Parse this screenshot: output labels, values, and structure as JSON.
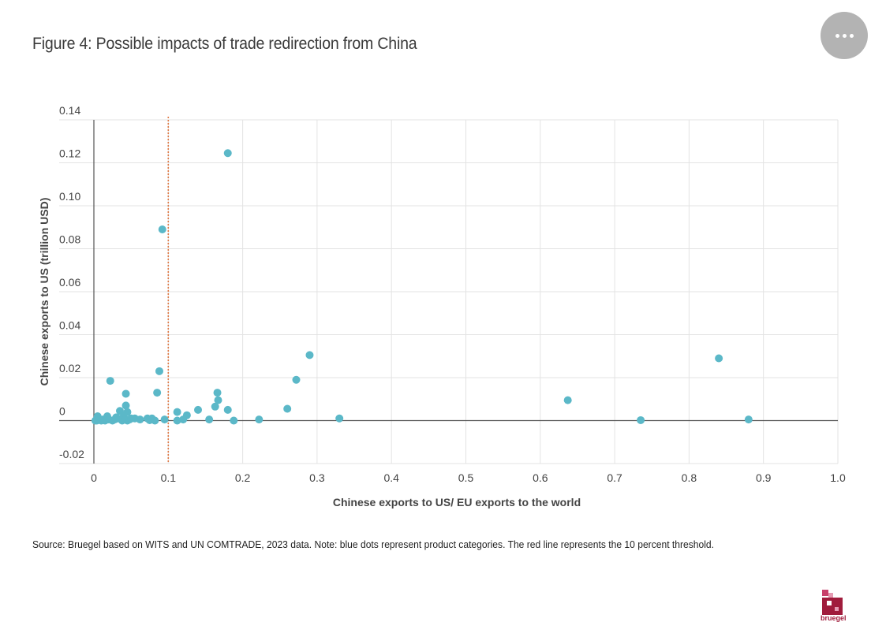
{
  "title": "Figure 4: Possible impacts of trade redirection from China",
  "source_note": "Source: Bruegel based on WITS and UN COMTRADE, 2023 data. Note: blue dots represent product categories. The red line represents the 10 percent threshold.",
  "logo_text": "bruegel",
  "menu_icon": "more-horizontal-icon",
  "colors": {
    "points": "#5bb8c8",
    "threshold": "#e07a45",
    "grid": "#e3e3e3",
    "axis": "#555555",
    "logo": "#a01c3c"
  },
  "chart_data": {
    "type": "scatter",
    "title": "",
    "xlabel": "Chinese exports to US/ EU exports to the world",
    "ylabel": "Chinese exports to US (trillion USD)",
    "xlim": [
      0,
      1.0
    ],
    "ylim": [
      -0.02,
      0.14
    ],
    "x_ticks": [
      0,
      0.1,
      0.2,
      0.3,
      0.4,
      0.5,
      0.6,
      0.7,
      0.8,
      0.9,
      1.0
    ],
    "x_tick_labels": [
      "0",
      "0.1",
      "0.2",
      "0.3",
      "0.4",
      "0.5",
      "0.6",
      "0.7",
      "0.8",
      "0.9",
      "1.0"
    ],
    "y_ticks": [
      -0.02,
      0,
      0.02,
      0.04,
      0.06,
      0.08,
      0.1,
      0.12,
      0.14
    ],
    "y_tick_labels": [
      "-0.02",
      "0",
      "0.02",
      "0.04",
      "0.06",
      "0.08",
      "0.10",
      "0.12",
      "0.14"
    ],
    "threshold_x": 0.1,
    "grid": true,
    "points": [
      [
        0.18,
        0.1245
      ],
      [
        0.092,
        0.089
      ],
      [
        0.29,
        0.0305
      ],
      [
        0.84,
        0.029
      ],
      [
        0.088,
        0.023
      ],
      [
        0.272,
        0.019
      ],
      [
        0.022,
        0.0185
      ],
      [
        0.043,
        0.0125
      ],
      [
        0.085,
        0.013
      ],
      [
        0.166,
        0.013
      ],
      [
        0.167,
        0.0095
      ],
      [
        0.043,
        0.007
      ],
      [
        0.163,
        0.0065
      ],
      [
        0.26,
        0.0055
      ],
      [
        0.18,
        0.005
      ],
      [
        0.14,
        0.005
      ],
      [
        0.035,
        0.0045
      ],
      [
        0.112,
        0.004
      ],
      [
        0.045,
        0.004
      ],
      [
        0.125,
        0.0025
      ],
      [
        0.637,
        0.0095
      ],
      [
        0.005,
        0.002
      ],
      [
        0.018,
        0.002
      ],
      [
        0.03,
        0.0015
      ],
      [
        0.04,
        0.002
      ],
      [
        0.055,
        0.001
      ],
      [
        0.062,
        0.0005
      ],
      [
        0.072,
        0.001
      ],
      [
        0.078,
        0.001
      ],
      [
        0.095,
        0.0005
      ],
      [
        0.12,
        0.0005
      ],
      [
        0.155,
        0.0005
      ],
      [
        0.222,
        0.0005
      ],
      [
        0.33,
        0.001
      ],
      [
        0.88,
        0.0005
      ],
      [
        0.735,
        0.0002
      ],
      [
        0.188,
        0.0
      ],
      [
        0.112,
        0.0
      ],
      [
        0.082,
        0.0
      ],
      [
        0.075,
        0.0002
      ],
      [
        0.048,
        0.0005
      ],
      [
        0.045,
        0.0
      ],
      [
        0.038,
        0.0
      ],
      [
        0.028,
        0.0005
      ],
      [
        0.025,
        0.0
      ],
      [
        0.02,
        0.0005
      ],
      [
        0.015,
        0.0
      ],
      [
        0.012,
        0.0005
      ],
      [
        0.01,
        0.0
      ],
      [
        0.008,
        0.0005
      ],
      [
        0.004,
        0.0
      ],
      [
        0.002,
        0.0
      ],
      [
        0.032,
        0.001
      ],
      [
        0.05,
        0.001
      ]
    ]
  }
}
